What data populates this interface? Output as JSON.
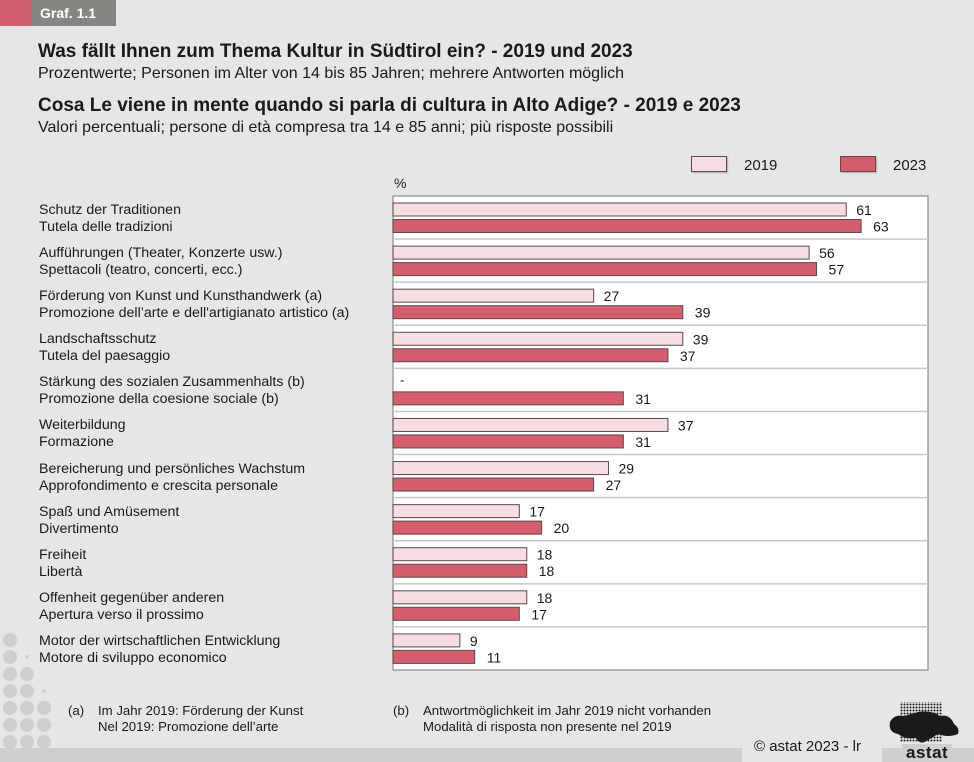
{
  "badge": "Graf. 1.1",
  "titles": {
    "de_title": "Was fällt Ihnen zum Thema Kultur in Südtirol ein? - 2019 und 2023",
    "de_subtitle": "Prozentwerte; Personen im Alter von 14 bis 85 Jahren; mehrere Antworten möglich",
    "it_title": "Cosa Le viene in mente quando si parla di cultura in Alto Adige? - 2019 e 2023",
    "it_subtitle": "Valori percentuali; persone di età compresa tra 14 e 85 anni; più risposte possibili"
  },
  "colors": {
    "series_2019": "#f5dde1",
    "series_2023": "#d45d6e",
    "bar_stroke": "#5a4a4c",
    "accent": "#d45d6e",
    "badge_grey": "#878582"
  },
  "chart_data": {
    "type": "bar",
    "orientation": "horizontal",
    "title": "Was fällt Ihnen zum Thema Kultur in Südtirol ein? - 2019 und 2023",
    "xlabel": "%",
    "ylabel": "",
    "xlim": [
      0,
      72
    ],
    "grid": false,
    "legend": "top-right",
    "categories": [
      {
        "de": "Schutz der Traditionen",
        "it": "Tutela delle tradizioni"
      },
      {
        "de": "Aufführungen (Theater, Konzerte usw.)",
        "it": "Spettacoli (teatro, concerti, ecc.)"
      },
      {
        "de": "Förderung von Kunst und Kunsthandwerk (a)",
        "it": "Promozione dell’arte e dell'artigianato artistico (a)"
      },
      {
        "de": "Landschaftsschutz",
        "it": "Tutela del paesaggio"
      },
      {
        "de": "Stärkung des sozialen Zusammenhalts (b)",
        "it": "Promozione della coesione sociale (b)"
      },
      {
        "de": "Weiterbildung",
        "it": "Formazione"
      },
      {
        "de": "Bereicherung und persönliches Wachstum",
        "it": "Approfondimento e crescita personale"
      },
      {
        "de": "Spaß und Amüsement",
        "it": "Divertimento"
      },
      {
        "de": "Freiheit",
        "it": "Libertà"
      },
      {
        "de": "Offenheit gegenüber anderen",
        "it": "Apertura verso il prossimo"
      },
      {
        "de": "Motor der wirtschaftlichen Entwicklung",
        "it": "Motore di sviluppo economico"
      }
    ],
    "series": [
      {
        "name": "2019",
        "values": [
          61,
          56,
          27,
          39,
          null,
          37,
          29,
          17,
          18,
          18,
          9
        ]
      },
      {
        "name": "2023",
        "values": [
          63,
          57,
          39,
          37,
          31,
          31,
          27,
          20,
          18,
          17,
          11
        ]
      }
    ],
    "missing_label": "-"
  },
  "legend": {
    "label_2019": "2019",
    "label_2023": "2023"
  },
  "unit_label": "%",
  "footnotes": {
    "a_marker": "(a)",
    "a_de": "Im Jahr 2019: Förderung der Kunst",
    "a_it": "Nel 2019: Promozione dell’arte",
    "b_marker": "(b)",
    "b_de": "Antwortmöglichkeit im Jahr 2019 nicht vorhanden",
    "b_it": "Modalità di risposta non presente nel 2019"
  },
  "copyright": "© astat 2023 - lr",
  "logo_text": "astat"
}
